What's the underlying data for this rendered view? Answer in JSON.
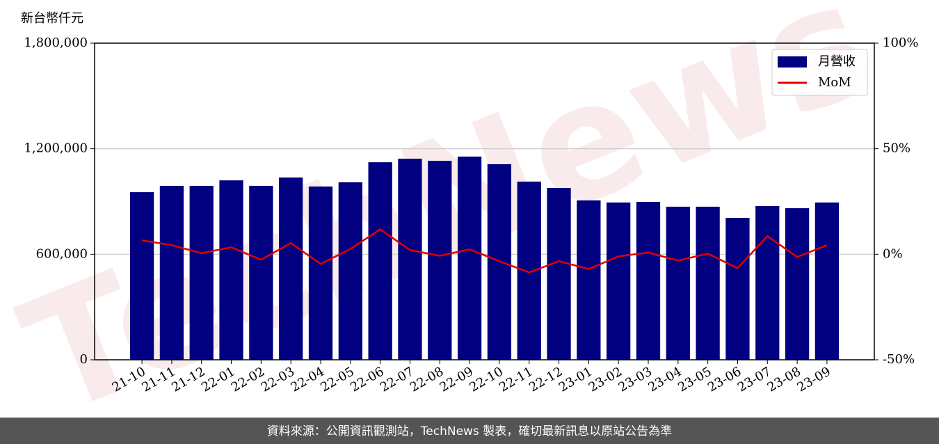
{
  "chart_data": {
    "type": "bar_line",
    "y_label": "新台幣仟元",
    "watermark": "TechNews",
    "footer": "資料來源：公開資訊觀測站，TechNews 製表，確切最新訊息以原站公告為準",
    "categories": [
      "21-10",
      "21-11",
      "21-12",
      "22-01",
      "22-02",
      "22-03",
      "22-04",
      "22-05",
      "22-06",
      "22-07",
      "22-08",
      "22-09",
      "22-10",
      "22-11",
      "22-12",
      "23-01",
      "23-02",
      "23-03",
      "23-04",
      "23-05",
      "23-06",
      "23-07",
      "23-08",
      "23-09"
    ],
    "series": [
      {
        "name": "月營收",
        "type": "bar",
        "color": "#000080",
        "values": [
          953000,
          989000,
          989000,
          1020000,
          989000,
          1036000,
          985000,
          1009000,
          1123000,
          1143000,
          1131000,
          1155000,
          1112000,
          1013000,
          977000,
          906000,
          894000,
          898000,
          870000,
          870000,
          807000,
          874000,
          862000,
          894000
        ]
      },
      {
        "name": "MoM",
        "type": "line",
        "axis": "y2",
        "color": "#e00000",
        "values": [
          6.6,
          4.3,
          0.5,
          3.3,
          -2.6,
          5.3,
          -4.6,
          2.5,
          11.8,
          2.0,
          -0.7,
          2.3,
          -3.3,
          -8.6,
          -3.3,
          -7.0,
          -1.0,
          0.8,
          -3.0,
          0.3,
          -6.6,
          8.6,
          -1.3,
          4.3
        ]
      }
    ],
    "ylim": [
      0,
      1800000
    ],
    "yticks": [
      0,
      {
        "value": 600000,
        "label": "600,000"
      },
      {
        "value": 1200000,
        "label": "1,200,000"
      },
      {
        "value": 1800000,
        "label": "1,800,000"
      }
    ],
    "y2lim": [
      -50,
      100
    ],
    "y2ticks": [
      {
        "value": -50,
        "label": "-50%"
      },
      {
        "value": 0,
        "label": "0%"
      },
      {
        "value": 50,
        "label": "50%"
      },
      {
        "value": 100,
        "label": "100%"
      }
    ],
    "grid": true,
    "legend": "upper right"
  }
}
